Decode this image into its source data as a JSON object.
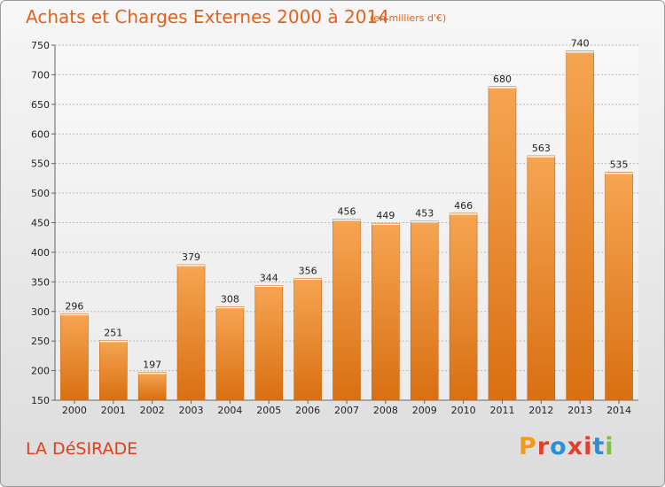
{
  "header": {
    "title": "Achats et Charges Externes 2000 à 2014",
    "unit": "(en milliers d'€)"
  },
  "footer": {
    "commune": "LA DéSIRADE",
    "logo_text": "Proxiti",
    "logo_colors": [
      "#f29a1b",
      "#e2402a",
      "#2a8fd6",
      "#e2402a",
      "#e2402a",
      "#2a8fd6",
      "#7cc242"
    ]
  },
  "colors": {
    "bar_top": "#f6a552",
    "bar_bottom": "#d96f12",
    "title": "#e2621d",
    "commune": "#e0401e"
  },
  "chart_data": {
    "type": "bar",
    "categories": [
      "2000",
      "2001",
      "2002",
      "2003",
      "2004",
      "2005",
      "2006",
      "2007",
      "2008",
      "2009",
      "2010",
      "2011",
      "2012",
      "2013",
      "2014"
    ],
    "values": [
      296,
      251,
      197,
      379,
      308,
      344,
      356,
      456,
      449,
      453,
      466,
      680,
      563,
      740,
      535
    ],
    "ylim": [
      150,
      750
    ],
    "yticks": [
      150,
      200,
      250,
      300,
      350,
      400,
      450,
      500,
      550,
      600,
      650,
      700,
      750
    ],
    "grid": true
  }
}
